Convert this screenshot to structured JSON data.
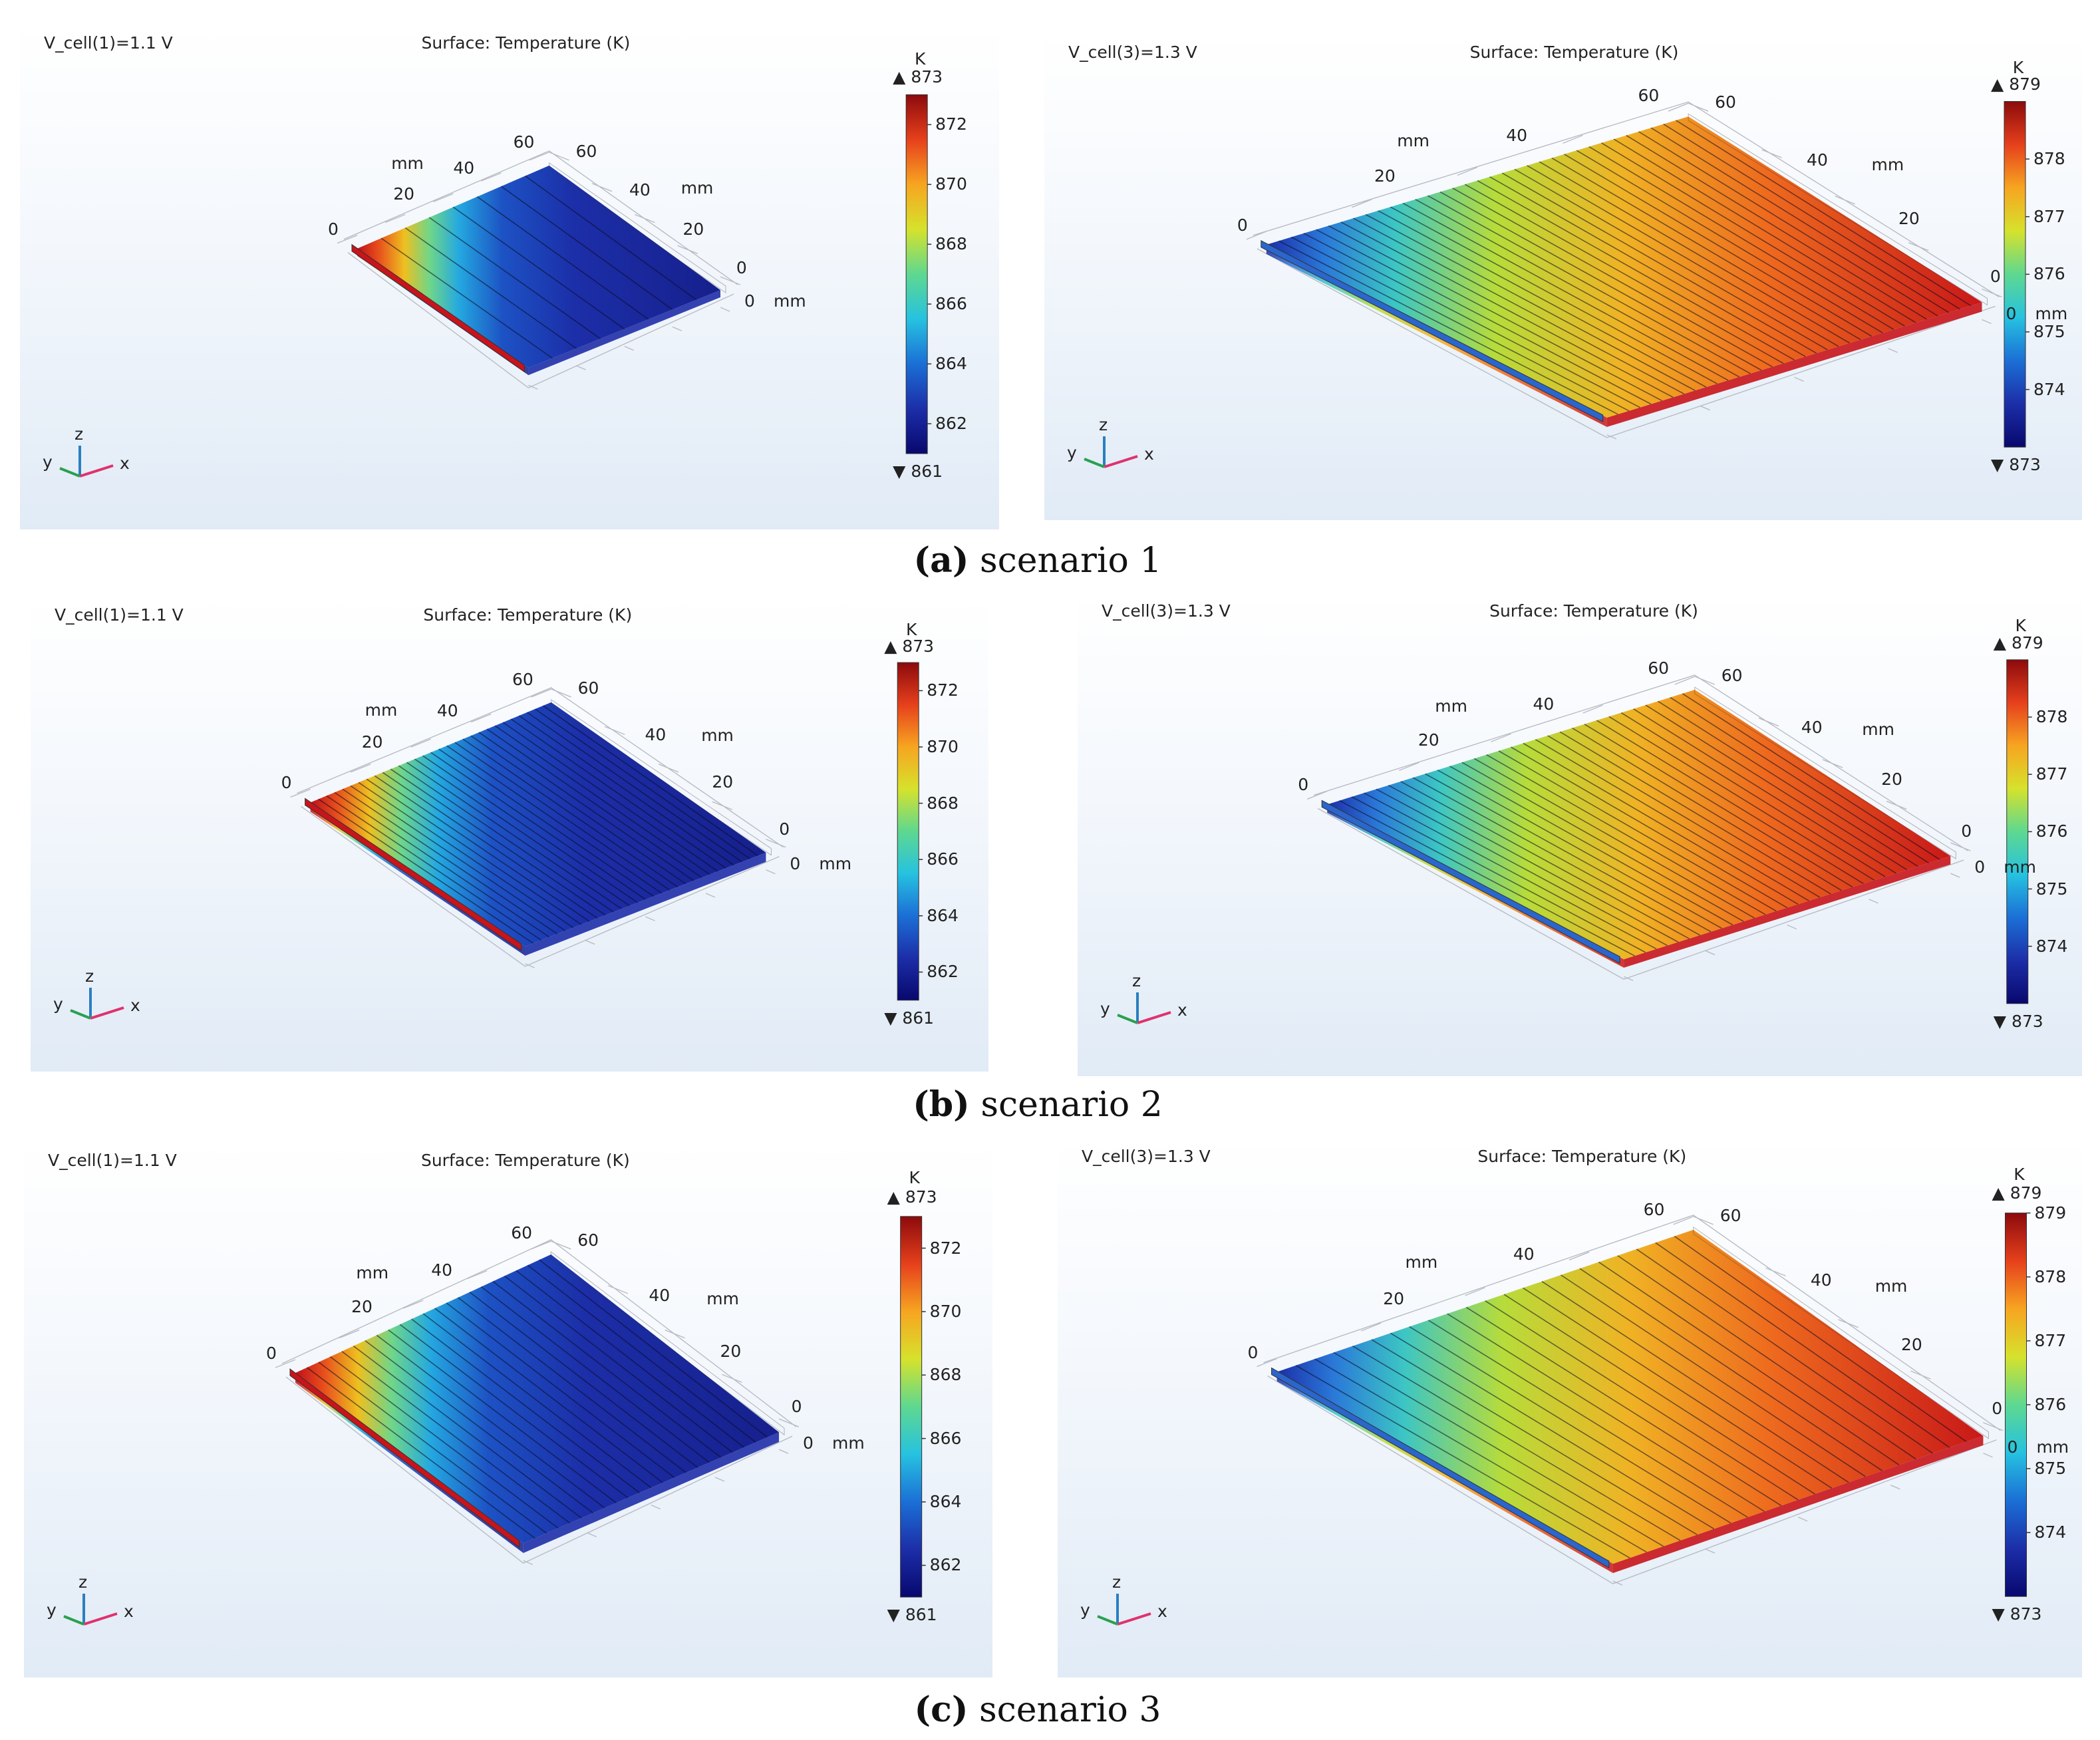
{
  "figure": {
    "rows": [
      {
        "caption_tag": "(a)",
        "caption_text": "scenario 1",
        "panels": [
          {
            "voltage_label": "V_cell(1)=1.1 V",
            "title": "Surface: Temperature (K)",
            "unit": "K",
            "max_marker": "873",
            "min_marker": "861",
            "colorbar_ticks": [
              "872",
              "870",
              "868",
              "866",
              "864",
              "862"
            ],
            "colorbar_min": 861,
            "colorbar_max": 873,
            "axis_ticks": {
              "left_zero": "0",
              "x_ticks": [
                "20",
                "40",
                "60"
              ],
              "x_unit": "mm",
              "y_ticks": [
                "60",
                "40",
                "20",
                "0"
              ],
              "y_unit": "mm",
              "z_zero": "0",
              "z_unit": "mm"
            },
            "hot_side": "left",
            "ribs": 8
          },
          {
            "voltage_label": "V_cell(3)=1.3 V",
            "title": "Surface: Temperature (K)",
            "unit": "K",
            "max_marker": "879",
            "min_marker": "873",
            "colorbar_ticks": [
              "878",
              "877",
              "876",
              "875",
              "874"
            ],
            "colorbar_min": 873,
            "colorbar_max": 879,
            "axis_ticks": {
              "left_zero": "0",
              "x_ticks": [
                "20",
                "40",
                "60"
              ],
              "x_unit": "mm",
              "y_ticks": [
                "60",
                "40",
                "20",
                "0"
              ],
              "y_unit": "mm",
              "z_zero": "0",
              "z_unit": "mm"
            },
            "hot_side": "right",
            "ribs": 34
          }
        ]
      },
      {
        "caption_tag": "(b)",
        "caption_text": "scenario 2",
        "panels": [
          {
            "voltage_label": "V_cell(1)=1.1 V",
            "title": "Surface: Temperature (K)",
            "unit": "K",
            "max_marker": "873",
            "min_marker": "861",
            "colorbar_ticks": [
              "872",
              "870",
              "868",
              "866",
              "864",
              "862"
            ],
            "colorbar_min": 861,
            "colorbar_max": 873,
            "axis_ticks": {
              "left_zero": "0",
              "x_ticks": [
                "20",
                "40",
                "60"
              ],
              "x_unit": "mm",
              "y_ticks": [
                "60",
                "40",
                "20",
                "0"
              ],
              "y_unit": "mm",
              "z_zero": "0",
              "z_unit": "mm"
            },
            "hot_side": "left",
            "ribs": 30
          },
          {
            "voltage_label": "V_cell(3)=1.3 V",
            "title": "Surface: Temperature (K)",
            "unit": "K",
            "max_marker": "879",
            "min_marker": "873",
            "colorbar_ticks": [
              "878",
              "877",
              "876",
              "875",
              "874"
            ],
            "colorbar_min": 873,
            "colorbar_max": 879,
            "axis_ticks": {
              "left_zero": "0",
              "x_ticks": [
                "20",
                "40",
                "60"
              ],
              "x_unit": "mm",
              "y_ticks": [
                "60",
                "40",
                "20",
                "0"
              ],
              "y_unit": "mm",
              "z_zero": "0",
              "z_unit": "mm"
            },
            "hot_side": "right",
            "ribs": 30
          }
        ]
      },
      {
        "caption_tag": "(c)",
        "caption_text": "scenario 3",
        "panels": [
          {
            "voltage_label": "V_cell(1)=1.1 V",
            "title": "Surface: Temperature (K)",
            "unit": "K",
            "max_marker": "873",
            "min_marker": "861",
            "colorbar_ticks": [
              "872",
              "870",
              "868",
              "866",
              "864",
              "862"
            ],
            "colorbar_min": 861,
            "colorbar_max": 873,
            "axis_ticks": {
              "left_zero": "0",
              "x_ticks": [
                "20",
                "40",
                "60"
              ],
              "x_unit": "mm",
              "y_ticks": [
                "60",
                "40",
                "20",
                "0"
              ],
              "y_unit": "mm",
              "z_zero": "0",
              "z_unit": "mm"
            },
            "hot_side": "left",
            "ribs": 22
          },
          {
            "voltage_label": "V_cell(3)=1.3 V",
            "title": "Surface: Temperature (K)",
            "unit": "K",
            "max_marker": "879",
            "min_marker": "873",
            "colorbar_ticks": [
              "879",
              "878",
              "877",
              "876",
              "875",
              "874"
            ],
            "colorbar_min": 873,
            "colorbar_max": 879,
            "axis_ticks": {
              "left_zero": "0",
              "x_ticks": [
                "20",
                "40",
                "60"
              ],
              "x_unit": "mm",
              "y_ticks": [
                "60",
                "40",
                "20",
                "0"
              ],
              "y_unit": "mm",
              "z_zero": "0",
              "z_unit": "mm"
            },
            "hot_side": "right",
            "ribs": 22
          }
        ]
      }
    ],
    "triad_labels": {
      "z": "z",
      "y": "y",
      "x": "x"
    },
    "max_symbol": "▲",
    "min_symbol": "▼",
    "colors": {
      "hot": "#c8141b",
      "cold": "#1f2fa8",
      "mid": "#f0d020",
      "jet": [
        "#08086e",
        "#1c2ea8",
        "#1b6fd6",
        "#26c2e0",
        "#5ed890",
        "#d6e22c",
        "#f7a521",
        "#e6401c",
        "#8c0a0c"
      ]
    }
  }
}
